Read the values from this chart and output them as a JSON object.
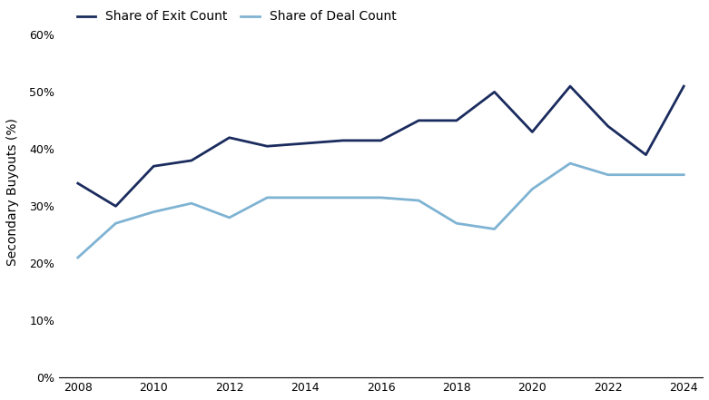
{
  "years": [
    2008,
    2009,
    2010,
    2011,
    2012,
    2013,
    2014,
    2015,
    2016,
    2017,
    2018,
    2019,
    2020,
    2021,
    2022,
    2023,
    2024
  ],
  "exit_count": [
    0.34,
    0.3,
    0.37,
    0.38,
    0.42,
    0.405,
    0.41,
    0.415,
    0.415,
    0.45,
    0.45,
    0.5,
    0.43,
    0.51,
    0.44,
    0.39,
    0.51
  ],
  "deal_count": [
    0.21,
    0.27,
    0.29,
    0.305,
    0.28,
    0.315,
    0.315,
    0.315,
    0.315,
    0.31,
    0.27,
    0.26,
    0.33,
    0.375,
    0.355,
    0.355,
    0.355
  ],
  "exit_color": "#1a2b5e",
  "deal_color": "#7fb3d3",
  "exit_label": "Share of Exit Count",
  "deal_label": "Share of Deal Count",
  "ylabel": "Secondary Buyouts (%)",
  "ylim": [
    0,
    0.65
  ],
  "yticks": [
    0.0,
    0.1,
    0.2,
    0.3,
    0.4,
    0.5,
    0.6
  ],
  "xlim": [
    2007.5,
    2024.5
  ],
  "xticks": [
    2008,
    2010,
    2012,
    2014,
    2016,
    2018,
    2020,
    2022,
    2024
  ],
  "line_width": 2.0,
  "background_color": "#ffffff",
  "legend_fontsize": 10,
  "ylabel_fontsize": 10
}
